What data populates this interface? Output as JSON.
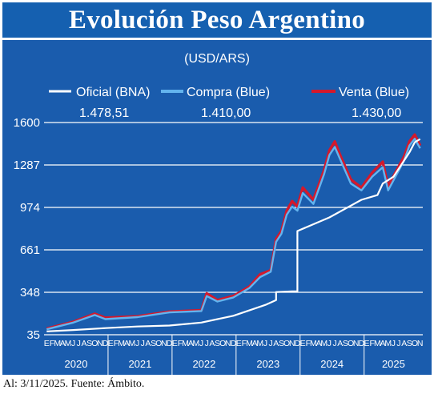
{
  "header": {
    "title": "Evolución Peso Argentino"
  },
  "footer": {
    "note": "Al: 3/11/2025. Fuente: Ámbito."
  },
  "colors": {
    "panel": "#1a5cad",
    "oficial": "#ffffff",
    "compra": "#63b4ee",
    "venta": "#d3192c"
  },
  "chart_data": {
    "type": "line",
    "title": "Evolución Peso Argentino",
    "subtitle": "(USD/ARS)",
    "ylim": [
      35,
      1600
    ],
    "yticks": [
      35,
      348,
      661,
      974,
      1287,
      1600
    ],
    "grid": true,
    "legend": "top",
    "month_labels": [
      "E",
      "F",
      "M",
      "A",
      "M",
      "J",
      "J",
      "A",
      "S",
      "O",
      "N",
      "D"
    ],
    "years": [
      "2020",
      "2021",
      "2022",
      "2023",
      "2024",
      "2025"
    ],
    "x_unit": "month (2020-01 to 2025-11)",
    "series": [
      {
        "name": "Oficial (BNA)",
        "last_value": "1.478,51",
        "color": "#ffffff",
        "x": [
          "2020-01",
          "2020-06",
          "2020-12",
          "2021-06",
          "2021-12",
          "2022-06",
          "2022-12",
          "2023-06",
          "2023-08",
          "2023-08",
          "2023-11",
          "2023-12",
          "2023-12",
          "2024-06",
          "2024-12",
          "2025-03",
          "2025-04",
          "2025-06",
          "2025-09",
          "2025-10",
          "2025-11"
        ],
        "values": [
          60,
          70,
          84,
          96,
          103,
          125,
          175,
          255,
          290,
          350,
          355,
          355,
          800,
          900,
          1030,
          1065,
          1150,
          1200,
          1380,
          1455,
          1478
        ]
      },
      {
        "name": "Compra (Blue)",
        "last_value": "1.410,00",
        "color": "#63b4ee",
        "x": [
          "2020-01",
          "2020-06",
          "2020-10",
          "2020-12",
          "2021-06",
          "2021-12",
          "2022-06",
          "2022-07",
          "2022-09",
          "2022-12",
          "2023-03",
          "2023-05",
          "2023-07",
          "2023-08",
          "2023-09",
          "2023-10",
          "2023-11",
          "2023-12",
          "2024-01",
          "2024-03",
          "2024-05",
          "2024-06",
          "2024-07",
          "2024-08",
          "2024-10",
          "2024-12",
          "2025-02",
          "2025-04",
          "2025-05",
          "2025-08",
          "2025-09",
          "2025-10",
          "2025-11"
        ],
        "values": [
          75,
          125,
          180,
          150,
          165,
          200,
          210,
          320,
          280,
          310,
          380,
          460,
          500,
          720,
          780,
          920,
          980,
          950,
          1080,
          1000,
          1220,
          1360,
          1420,
          1330,
          1150,
          1100,
          1200,
          1270,
          1100,
          1320,
          1430,
          1480,
          1410
        ]
      },
      {
        "name": "Venta (Blue)",
        "last_value": "1.430,00",
        "color": "#d3192c",
        "x": [
          "2020-01",
          "2020-06",
          "2020-10",
          "2020-12",
          "2021-06",
          "2021-12",
          "2022-06",
          "2022-07",
          "2022-09",
          "2022-12",
          "2023-03",
          "2023-05",
          "2023-07",
          "2023-08",
          "2023-09",
          "2023-10",
          "2023-11",
          "2023-12",
          "2024-01",
          "2024-03",
          "2024-05",
          "2024-06",
          "2024-07",
          "2024-08",
          "2024-10",
          "2024-12",
          "2025-02",
          "2025-04",
          "2025-05",
          "2025-08",
          "2025-09",
          "2025-10",
          "2025-11"
        ],
        "values": [
          80,
          130,
          190,
          160,
          170,
          205,
          215,
          340,
          290,
          320,
          390,
          480,
          510,
          740,
          800,
          950,
          1020,
          980,
          1120,
          1030,
          1250,
          1395,
          1460,
          1360,
          1180,
          1120,
          1230,
          1310,
          1130,
          1350,
          1460,
          1510,
          1430
        ]
      }
    ]
  }
}
